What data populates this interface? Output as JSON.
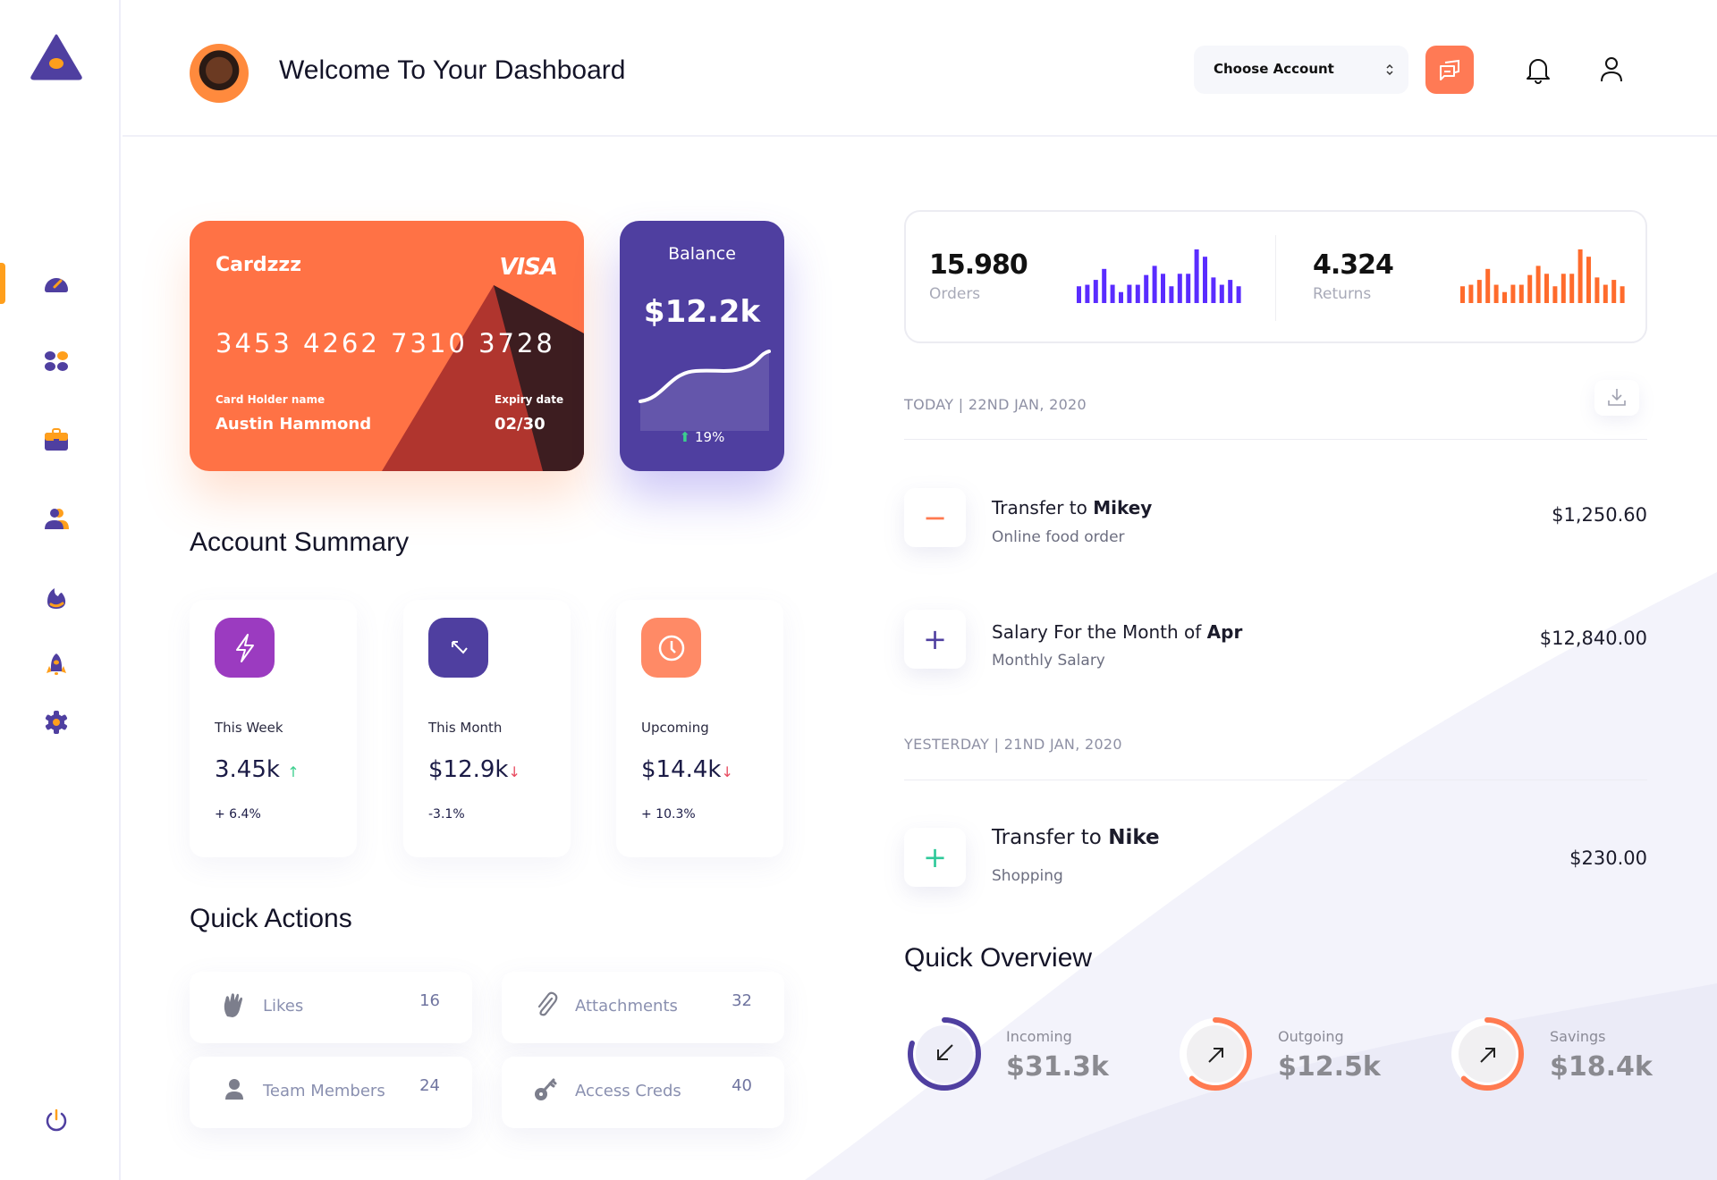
{
  "header": {
    "title": "Welcome To Your Dashboard",
    "account_select": {
      "value": "Choose Account"
    }
  },
  "sidebar": {
    "items": [
      {
        "icon": "dashboard-gauge-icon",
        "active": true
      },
      {
        "icon": "apps-grid-icon"
      },
      {
        "icon": "briefcase-icon"
      },
      {
        "icon": "users-icon"
      },
      {
        "icon": "fire-icon"
      },
      {
        "icon": "rocket-icon"
      },
      {
        "icon": "settings-gear-icon"
      }
    ],
    "logout_icon": "power-icon"
  },
  "card": {
    "name": "Cardzzz",
    "brand": "VISA",
    "number": "3453 4262 7310 3728",
    "holder_label": "Card Holder name",
    "holder": "Austin Hammond",
    "expiry_label": "Expiry date",
    "expiry": "02/30"
  },
  "balance": {
    "label": "Balance",
    "value": "$12.2k",
    "change": "19%",
    "trend": "up"
  },
  "account_summary": {
    "title": "Account Summary",
    "items": [
      {
        "label": "This Week",
        "value": "3.45k",
        "trend": "up",
        "change": "+ 6.4%",
        "color": "#9b3bc0",
        "icon": "lightning-icon"
      },
      {
        "label": "This Month",
        "value": "$12.9k",
        "trend": "down",
        "change": "-3.1%",
        "color": "#4f3fa0",
        "icon": "arrow-up-left-icon"
      },
      {
        "label": "Upcoming",
        "value": "$14.4k",
        "trend": "down",
        "change": "+ 10.3%",
        "color": "#ff8a66",
        "icon": "clock-icon"
      }
    ]
  },
  "quick_actions": {
    "title": "Quick Actions",
    "items": [
      {
        "label": "Likes",
        "count": "16",
        "icon": "clap-hands-icon"
      },
      {
        "label": "Attachments",
        "count": "32",
        "icon": "paperclip-icon"
      },
      {
        "label": "Team Members",
        "count": "24",
        "icon": "person-icon"
      },
      {
        "label": "Access Creds",
        "count": "40",
        "icon": "key-icon"
      }
    ]
  },
  "stats": {
    "orders": {
      "value": "15.980",
      "label": "Orders",
      "color": "#5a2cff"
    },
    "returns": {
      "value": "4.324",
      "label": "Returns",
      "color": "#ff6b2c"
    },
    "bars": [
      55,
      60,
      76,
      112,
      60,
      36,
      60,
      60,
      92,
      122,
      96,
      55,
      96,
      96,
      176,
      152,
      84,
      60,
      76,
      55
    ]
  },
  "transactions": {
    "groups": [
      {
        "date": "TODAY | 22ND JAN, 2020",
        "items": [
          {
            "title_prefix": "Transfer to ",
            "title_bold": "Mikey",
            "subtitle": "Online food order",
            "amount": "$1,250.60",
            "type": "minus",
            "color": "#ff7a50"
          },
          {
            "title_prefix": "Salary For the Month of ",
            "title_bold": "Apr",
            "subtitle": "Monthly Salary",
            "amount": "$12,840.00",
            "type": "plus",
            "color": "#4f3fa0"
          }
        ]
      },
      {
        "date": "YESTERDAY | 21ND JAN, 2020",
        "items": [
          {
            "title_prefix": "Transfer to ",
            "title_bold": "Nike",
            "subtitle": "Shopping",
            "amount": "$230.00",
            "type": "plus",
            "color": "#2ec99a"
          }
        ]
      }
    ]
  },
  "quick_overview": {
    "title": "Quick Overview",
    "items": [
      {
        "label": "Incoming",
        "value": "$31.3k",
        "progress": 0.8,
        "color": "#4f3fa0",
        "icon": "arrow-down-left-icon"
      },
      {
        "label": "Outgoing",
        "value": "$12.5k",
        "progress": 0.62,
        "color": "#ff7a50",
        "icon": "arrow-up-right-icon"
      },
      {
        "label": "Savings",
        "value": "$18.4k",
        "progress": 0.62,
        "color": "#ff7a50",
        "icon": "arrow-up-right-icon"
      }
    ]
  }
}
